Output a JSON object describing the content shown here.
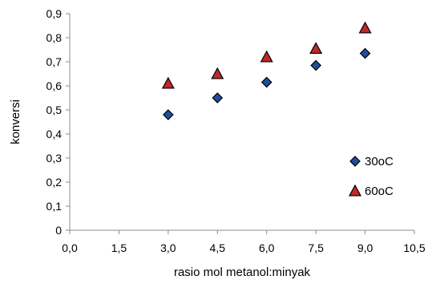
{
  "chart_data": {
    "type": "scatter",
    "xlabel": "rasio mol metanol:minyak",
    "ylabel": "konversi",
    "xlim": [
      0,
      10.5
    ],
    "ylim": [
      0,
      0.9
    ],
    "x_ticks": [
      "0,0",
      "1,5",
      "3,0",
      "4,5",
      "6,0",
      "7,5",
      "9,0",
      "10,5"
    ],
    "y_ticks": [
      "0",
      "0,1",
      "0,2",
      "0,3",
      "0,4",
      "0,5",
      "0,6",
      "0,7",
      "0,8",
      "0,9"
    ],
    "grid": false,
    "legend_position": "bottom-right",
    "series": [
      {
        "name": "30oC",
        "marker": "diamond",
        "fill_color": "#1f4e9c",
        "edge_color": "#000000",
        "points": [
          {
            "x": 3.0,
            "y": 0.48
          },
          {
            "x": 4.5,
            "y": 0.55
          },
          {
            "x": 6.0,
            "y": 0.615
          },
          {
            "x": 7.5,
            "y": 0.685
          },
          {
            "x": 9.0,
            "y": 0.735
          }
        ]
      },
      {
        "name": "60oC",
        "marker": "triangle",
        "fill_color": "#c0282d",
        "edge_color": "#000000",
        "points": [
          {
            "x": 3.0,
            "y": 0.61
          },
          {
            "x": 4.5,
            "y": 0.65
          },
          {
            "x": 6.0,
            "y": 0.72
          },
          {
            "x": 7.5,
            "y": 0.755
          },
          {
            "x": 9.0,
            "y": 0.84
          }
        ]
      }
    ]
  }
}
